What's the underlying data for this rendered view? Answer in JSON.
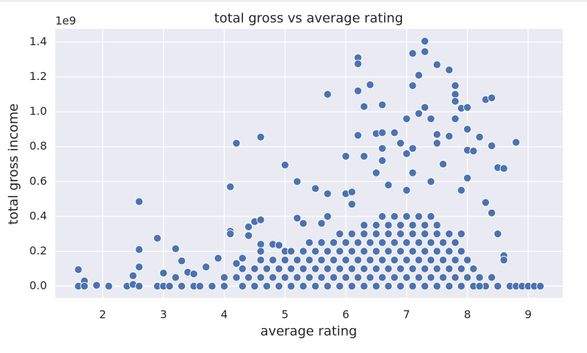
{
  "chart_data": {
    "type": "scatter",
    "title": "total gross vs average rating",
    "x_label": "average rating",
    "y_label": "total gross income",
    "y_offset_label": "1e9",
    "color": "#4c72b0",
    "grid": true,
    "xlim": [
      1.22,
      9.57
    ],
    "ylim": [
      -0.067,
      1.475
    ],
    "xticks": [
      2,
      3,
      4,
      5,
      6,
      7,
      8,
      9
    ],
    "yticks": [
      {
        "value": 0,
        "label": "0.0"
      },
      0.2,
      0.4,
      0.6,
      0.8,
      {
        "value": 1,
        "label": "1.0"
      },
      1.2,
      1.4
    ],
    "x": [
      1.6,
      1.6,
      1.7,
      1.7,
      1.9,
      2.1,
      2.4,
      2.5,
      2.5,
      2.6,
      2.6,
      2.6,
      2.6,
      2.9,
      2.9,
      3.0,
      3.0,
      3.2,
      3.2,
      3.3,
      3.4,
      3.5,
      3.7,
      3.9,
      4.1,
      4.1,
      4.1,
      4.2,
      4.2,
      4.3,
      4.4,
      4.4,
      4.5,
      4.6,
      4.6,
      4.6,
      4.6,
      4.8,
      4.9,
      5.0,
      5.0,
      5.2,
      5.2,
      5.3,
      5.5,
      5.6,
      5.7,
      5.7,
      5.7,
      6.0,
      6.0,
      6.1,
      6.1,
      6.2,
      6.2,
      6.2,
      6.2,
      6.3,
      6.3,
      6.4,
      6.5,
      6.5,
      6.6,
      6.6,
      6.6,
      6.6,
      6.7,
      6.8,
      6.9,
      7.0,
      7.0,
      7.1,
      7.1,
      7.1,
      7.2,
      7.2,
      7.3,
      7.3,
      7.3,
      7.4,
      7.5,
      7.5,
      7.5,
      7.7,
      7.7,
      7.8,
      7.8,
      7.8,
      7.8,
      7.9,
      8.0,
      8.0,
      8.0,
      8.1,
      8.2,
      8.3,
      8.4,
      8.4,
      8.5,
      8.6,
      8.8,
      8.6,
      8.6,
      8.4,
      8.3,
      8.5,
      8.0,
      7.9,
      7.6,
      7.4,
      7.1,
      7.0,
      3.1,
      3.3,
      3.5,
      3.6,
      3.8,
      4.0,
      4.3,
      4.5,
      4.7,
      4.9,
      5.1,
      5.3,
      5.5,
      5.7,
      5.9,
      6.1,
      6.3,
      6.5,
      6.7,
      6.9,
      7.1,
      7.3,
      7.5,
      7.7,
      7.9,
      8.1,
      8.3,
      8.5,
      8.7,
      8.8,
      8.9,
      9.0,
      9.1,
      9.2,
      8.2,
      4.0,
      4.2,
      4.4,
      4.6,
      4.8,
      5.0,
      5.2,
      5.4,
      5.6,
      5.8,
      6.0,
      6.2,
      6.4,
      6.6,
      6.8,
      7.0,
      7.2,
      7.4,
      7.6,
      7.8,
      8.0,
      8.2,
      8.4,
      4.3,
      4.5,
      4.7,
      4.9,
      5.1,
      5.3,
      5.5,
      5.7,
      5.9,
      6.1,
      6.3,
      6.5,
      6.7,
      6.9,
      7.1,
      7.3,
      7.5,
      7.7,
      7.9,
      8.1,
      4.6,
      4.8,
      5.0,
      5.2,
      5.4,
      5.6,
      5.8,
      6.0,
      6.2,
      6.4,
      6.6,
      6.8,
      7.0,
      7.2,
      7.4,
      7.6,
      7.8,
      8.0,
      5.1,
      5.3,
      5.5,
      5.7,
      5.9,
      6.1,
      6.3,
      6.5,
      6.7,
      6.9,
      7.1,
      7.3,
      7.5,
      7.7,
      7.9,
      5.4,
      5.6,
      5.8,
      6.0,
      6.2,
      6.4,
      6.6,
      6.8,
      7.0,
      7.2,
      7.4,
      7.6,
      7.8,
      5.9,
      6.1,
      6.3,
      6.5,
      6.7,
      6.9,
      7.1,
      7.3,
      7.5,
      7.7,
      7.9,
      6.3,
      6.5,
      6.7,
      6.9,
      7.1,
      7.3,
      7.5,
      6.6,
      6.8,
      7.0,
      7.2,
      7.4
    ],
    "values": [
      0.095,
      0,
      0.03,
      0,
      0.005,
      0,
      0,
      0.06,
      0.01,
      0.485,
      0.21,
      0.11,
      0,
      0.275,
      0,
      0.075,
      0,
      0.215,
      0.05,
      0.145,
      0.08,
      0.07,
      0.11,
      0.16,
      0.57,
      0.315,
      0.3,
      0.82,
      0.13,
      0.16,
      0.34,
      0.29,
      0.37,
      0.855,
      0.38,
      0.24,
      0.2,
      0.24,
      0.235,
      0.695,
      0.2,
      0.6,
      0.39,
      0.36,
      0.56,
      0.36,
      1.1,
      0.53,
      0.4,
      0.745,
      0.53,
      0.47,
      0.54,
      1.31,
      1.275,
      1.12,
      0.865,
      1.03,
      0.745,
      1.155,
      0.875,
      0.65,
      1.04,
      0.88,
      0.79,
      0.72,
      0.58,
      0.88,
      0.82,
      0.96,
      0.76,
      1.335,
      1.15,
      0.79,
      1.21,
      0.99,
      1.405,
      1.345,
      1.025,
      0.96,
      1.27,
      0.87,
      0.82,
      1.24,
      0.86,
      1.15,
      1.1,
      1.06,
      0.96,
      1.02,
      1.025,
      0.9,
      0.78,
      0.775,
      0.855,
      1.07,
      1.08,
      0.805,
      0.68,
      0.675,
      0.825,
      0.175,
      0.15,
      0.42,
      0.48,
      0.3,
      0.62,
      0.55,
      0.7,
      0.6,
      0.65,
      0.55,
      0,
      0,
      0,
      0,
      0,
      0,
      0,
      0,
      0,
      0,
      0,
      0,
      0,
      0,
      0,
      0,
      0,
      0,
      0,
      0,
      0,
      0,
      0,
      0,
      0,
      0,
      0,
      0,
      0,
      0,
      0,
      0,
      0,
      0,
      0,
      0.05,
      0.05,
      0.05,
      0.05,
      0.05,
      0.05,
      0.05,
      0.05,
      0.05,
      0.05,
      0.05,
      0.05,
      0.05,
      0.05,
      0.05,
      0.05,
      0.05,
      0.05,
      0.05,
      0.05,
      0.05,
      0.05,
      0.05,
      0.1,
      0.1,
      0.1,
      0.1,
      0.1,
      0.1,
      0.1,
      0.1,
      0.1,
      0.1,
      0.1,
      0.1,
      0.1,
      0.1,
      0.1,
      0.1,
      0.1,
      0.1,
      0.1,
      0.1,
      0.15,
      0.15,
      0.15,
      0.15,
      0.15,
      0.15,
      0.15,
      0.15,
      0.15,
      0.15,
      0.15,
      0.15,
      0.15,
      0.15,
      0.15,
      0.15,
      0.15,
      0.15,
      0.2,
      0.2,
      0.2,
      0.2,
      0.2,
      0.2,
      0.2,
      0.2,
      0.2,
      0.2,
      0.2,
      0.2,
      0.2,
      0.2,
      0.2,
      0.25,
      0.25,
      0.25,
      0.25,
      0.25,
      0.25,
      0.25,
      0.25,
      0.25,
      0.25,
      0.25,
      0.25,
      0.25,
      0.3,
      0.3,
      0.3,
      0.3,
      0.3,
      0.3,
      0.3,
      0.3,
      0.3,
      0.3,
      0.3,
      0.35,
      0.35,
      0.35,
      0.35,
      0.35,
      0.35,
      0.35,
      0.4,
      0.4,
      0.4,
      0.4,
      0.4
    ]
  }
}
